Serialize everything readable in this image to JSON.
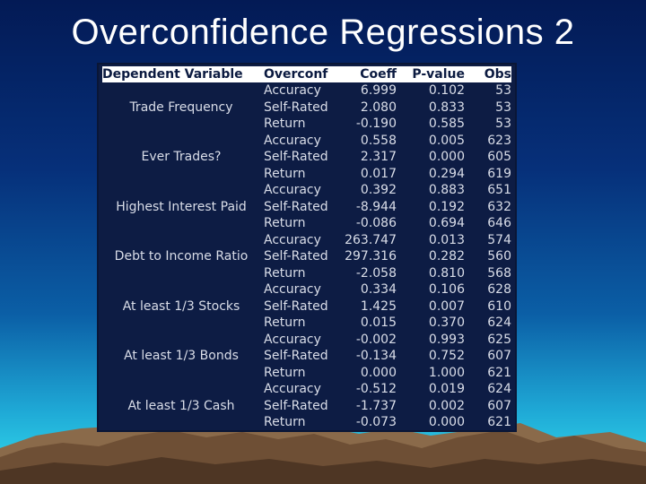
{
  "slide": {
    "title": "Overconfidence Regressions 2"
  },
  "table": {
    "headers": {
      "dependent": "Dependent Variable",
      "overconf": "Overconf",
      "coeff": "Coeff",
      "pvalue": "P-value",
      "obs": "Obs"
    },
    "groups": [
      {
        "dependent": "Trade Frequency",
        "rows": [
          {
            "overconf": "Accuracy",
            "coeff": "6.999",
            "p": "0.102",
            "obs": "53"
          },
          {
            "overconf": "Self-Rated",
            "coeff": "2.080",
            "p": "0.833",
            "obs": "53"
          },
          {
            "overconf": "Return",
            "coeff": "-0.190",
            "p": "0.585",
            "obs": "53"
          }
        ]
      },
      {
        "dependent": "Ever Trades?",
        "rows": [
          {
            "overconf": "Accuracy",
            "coeff": "0.558",
            "p": "0.005",
            "obs": "623"
          },
          {
            "overconf": "Self-Rated",
            "coeff": "2.317",
            "p": "0.000",
            "obs": "605"
          },
          {
            "overconf": "Return",
            "coeff": "0.017",
            "p": "0.294",
            "obs": "619"
          }
        ]
      },
      {
        "dependent": "Highest Interest Paid",
        "rows": [
          {
            "overconf": "Accuracy",
            "coeff": "0.392",
            "p": "0.883",
            "obs": "651"
          },
          {
            "overconf": "Self-Rated",
            "coeff": "-8.944",
            "p": "0.192",
            "obs": "632"
          },
          {
            "overconf": "Return",
            "coeff": "-0.086",
            "p": "0.694",
            "obs": "646"
          }
        ]
      },
      {
        "dependent": "Debt to Income Ratio",
        "rows": [
          {
            "overconf": "Accuracy",
            "coeff": "263.747",
            "p": "0.013",
            "obs": "574"
          },
          {
            "overconf": "Self-Rated",
            "coeff": "297.316",
            "p": "0.282",
            "obs": "560"
          },
          {
            "overconf": "Return",
            "coeff": "-2.058",
            "p": "0.810",
            "obs": "568"
          }
        ]
      },
      {
        "dependent": "At least 1/3 Stocks",
        "rows": [
          {
            "overconf": "Accuracy",
            "coeff": "0.334",
            "p": "0.106",
            "obs": "628"
          },
          {
            "overconf": "Self-Rated",
            "coeff": "1.425",
            "p": "0.007",
            "obs": "610"
          },
          {
            "overconf": "Return",
            "coeff": "0.015",
            "p": "0.370",
            "obs": "624"
          }
        ]
      },
      {
        "dependent": "At least 1/3 Bonds",
        "rows": [
          {
            "overconf": "Accuracy",
            "coeff": "-0.002",
            "p": "0.993",
            "obs": "625"
          },
          {
            "overconf": "Self-Rated",
            "coeff": "-0.134",
            "p": "0.752",
            "obs": "607"
          },
          {
            "overconf": "Return",
            "coeff": "0.000",
            "p": "1.000",
            "obs": "621"
          }
        ]
      },
      {
        "dependent": "At least 1/3 Cash",
        "rows": [
          {
            "overconf": "Accuracy",
            "coeff": "-0.512",
            "p": "0.019",
            "obs": "624"
          },
          {
            "overconf": "Self-Rated",
            "coeff": "-1.737",
            "p": "0.002",
            "obs": "607"
          },
          {
            "overconf": "Return",
            "coeff": "-0.073",
            "p": "0.000",
            "obs": "621"
          }
        ]
      }
    ]
  },
  "colors": {
    "table_bg": "#0d1c44",
    "header_bg": "#ffffff",
    "header_text": "#0b1a40",
    "cell_text": "#d9dde8"
  }
}
